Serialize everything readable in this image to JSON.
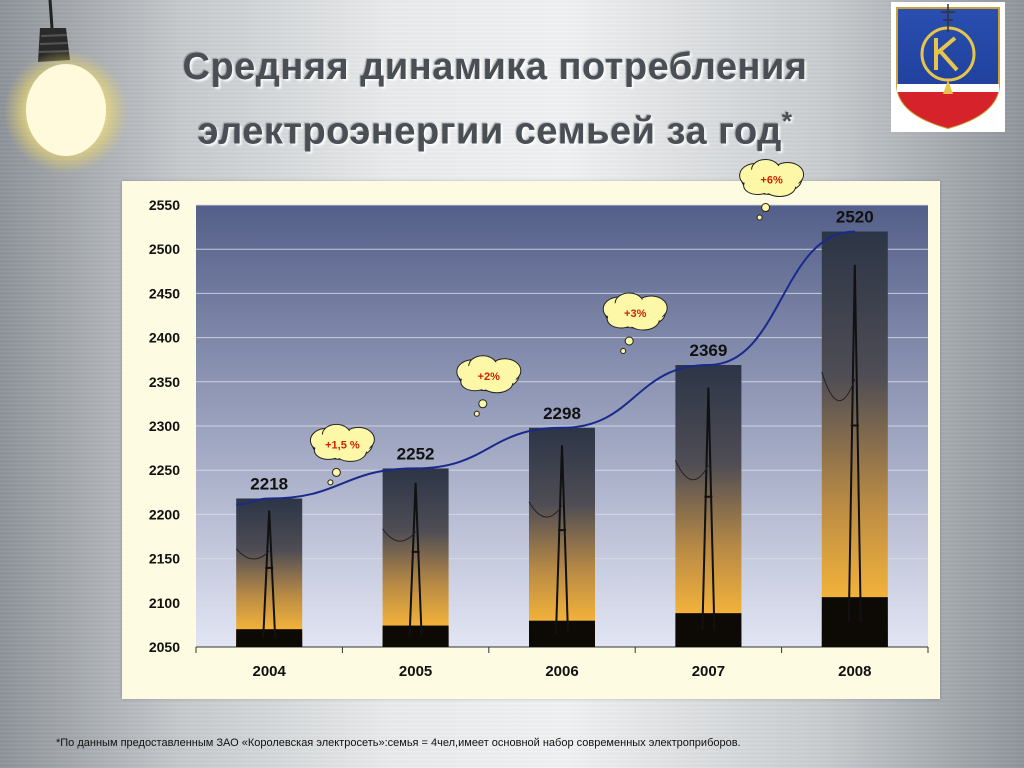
{
  "slide": {
    "title_line1": "Средняя динамика потребления",
    "title_line2": "электроэнергии семьей за год",
    "title_marker": "*",
    "footnote": "*По данным предоставленным ЗАО «Королевская электросеть»:семья = 4чел,имеет основной набор современных электроприборов."
  },
  "chart_data": {
    "type": "bar",
    "categories": [
      "2004",
      "2005",
      "2006",
      "2007",
      "2008"
    ],
    "values": [
      2218,
      2252,
      2298,
      2369,
      2520
    ],
    "ylim": [
      2050,
      2550
    ],
    "yticks": [
      2050,
      2100,
      2150,
      2200,
      2250,
      2300,
      2350,
      2400,
      2450,
      2500,
      2550
    ],
    "grid": true,
    "trendline": true,
    "callouts": [
      "+1,5 %",
      "+2%",
      "+3%",
      "+6%"
    ],
    "colors": {
      "plot_bg_top": "#55608a",
      "plot_bg_bottom": "#dfe3f2",
      "trend": "#1a2a8c",
      "callout_fill": "#fdf8a8",
      "callout_text": "#cc2200"
    }
  }
}
